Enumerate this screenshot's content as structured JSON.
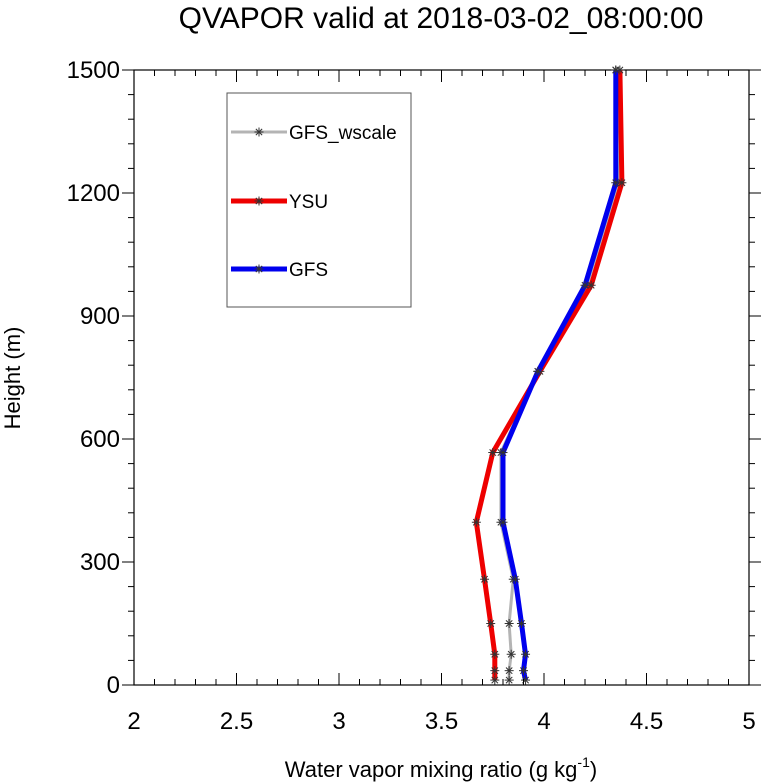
{
  "chart_data": {
    "type": "line",
    "title": "QVAPOR valid at 2018-03-02_08:00:00",
    "xlabel": "Water vapor mixing ratio (g kg",
    "xlabel_sup": "-1",
    "xlabel_suffix": ")",
    "ylabel": "Height (m)",
    "xlim": [
      2,
      5
    ],
    "ylim": [
      0,
      1500
    ],
    "x_ticks": [
      2,
      2.5,
      3,
      3.5,
      4,
      4.5,
      5
    ],
    "x_tick_labels": [
      "2",
      "2.5",
      "3",
      "3.5",
      "4",
      "4.5",
      "5"
    ],
    "y_ticks": [
      0,
      300,
      600,
      900,
      1200,
      1500
    ],
    "y_tick_labels": [
      "0",
      "300",
      "600",
      "900",
      "1200",
      "1500"
    ],
    "grid": false,
    "legend_position": "top-left",
    "series": [
      {
        "name": "GFS_wscale",
        "color": "#b4b4b4",
        "points": [
          [
            3.83,
            12
          ],
          [
            3.83,
            35
          ],
          [
            3.84,
            75
          ],
          [
            3.83,
            150
          ],
          [
            3.85,
            258
          ],
          [
            3.79,
            397
          ],
          [
            3.79,
            567
          ],
          [
            3.97,
            765
          ],
          [
            4.21,
            975
          ],
          [
            4.36,
            1225
          ],
          [
            4.35,
            1500
          ]
        ]
      },
      {
        "name": "YSU",
        "color": "#ee0000",
        "points": [
          [
            3.76,
            12
          ],
          [
            3.76,
            35
          ],
          [
            3.76,
            75
          ],
          [
            3.74,
            150
          ],
          [
            3.71,
            258
          ],
          [
            3.67,
            397
          ],
          [
            3.75,
            567
          ],
          [
            3.98,
            765
          ],
          [
            4.23,
            975
          ],
          [
            4.38,
            1225
          ],
          [
            4.37,
            1500
          ]
        ]
      },
      {
        "name": "GFS",
        "color": "#0000ee",
        "points": [
          [
            3.91,
            12
          ],
          [
            3.9,
            35
          ],
          [
            3.91,
            75
          ],
          [
            3.89,
            150
          ],
          [
            3.86,
            258
          ],
          [
            3.8,
            397
          ],
          [
            3.8,
            567
          ],
          [
            3.97,
            765
          ],
          [
            4.2,
            975
          ],
          [
            4.35,
            1225
          ],
          [
            4.35,
            1500
          ]
        ]
      }
    ]
  }
}
